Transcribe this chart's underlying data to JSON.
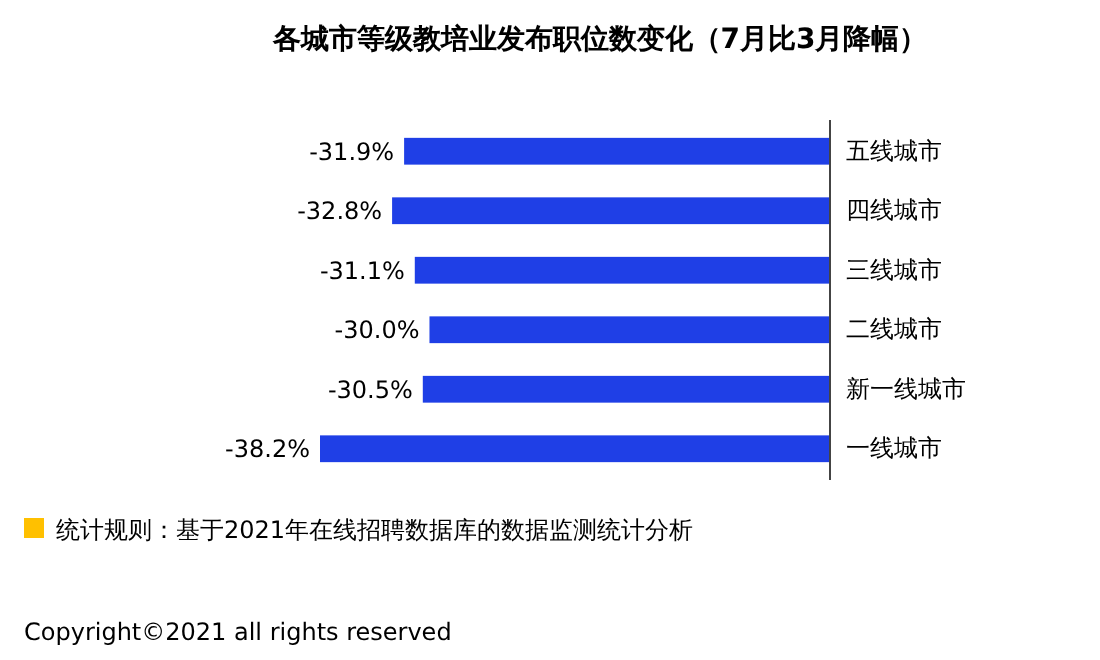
{
  "chart_data": {
    "type": "bar",
    "orientation": "horizontal",
    "title": "各城市等级教培业发布职位数变化（7月比3月降幅）",
    "categories": [
      "五线城市",
      "四线城市",
      "三线城市",
      "二线城市",
      "新一线城市",
      "一线城市"
    ],
    "values": [
      -31.9,
      -32.8,
      -31.1,
      -30.0,
      -30.5,
      -38.2
    ],
    "value_labels": [
      "-31.9%",
      "-32.8%",
      "-31.1%",
      "-30.0%",
      "-30.5%",
      "-38.2%"
    ],
    "color": "#1f3fe6",
    "annotations": [
      "统计规则：基于2021年在线招聘数据库的数据监测统计分析",
      "Copyright©2021 all rights reserved"
    ]
  }
}
